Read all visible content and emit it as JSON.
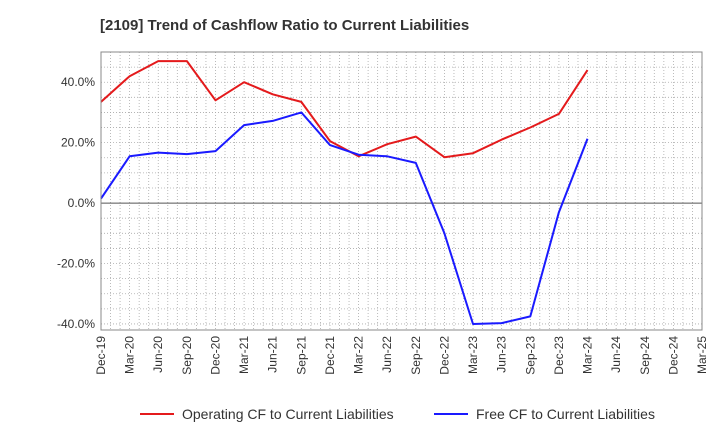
{
  "chart_data": {
    "type": "line",
    "title": "[2109]  Trend of Cashflow Ratio to Current Liabilities",
    "xlabel": "",
    "ylabel": "",
    "ylim": [
      -42,
      50
    ],
    "y_ticks": [
      -40,
      -20,
      0,
      20,
      40
    ],
    "y_tick_labels": [
      "-40.0%",
      "-20.0%",
      "0.0%",
      "20.0%",
      "40.0%"
    ],
    "x_tick_labels": [
      "Dec-19",
      "Mar-20",
      "Jun-20",
      "Sep-20",
      "Dec-20",
      "Mar-21",
      "Jun-21",
      "Sep-21",
      "Dec-21",
      "Mar-22",
      "Jun-22",
      "Sep-22",
      "Dec-22",
      "Mar-23",
      "Jun-23",
      "Sep-23",
      "Dec-23",
      "Mar-24",
      "Jun-24",
      "Sep-24",
      "Dec-24",
      "Mar-25"
    ],
    "grid": true,
    "legend_position": "bottom",
    "series": [
      {
        "name": "Operating CF to Current Liabilities",
        "color": "#e41a1c",
        "values": [
          33.5,
          42.0,
          47.0,
          47.0,
          34.0,
          40.0,
          36.0,
          33.5,
          20.5,
          15.5,
          19.5,
          22.0,
          15.2,
          16.5,
          21.0,
          25.0,
          29.5,
          44.0
        ]
      },
      {
        "name": "Free CF to Current Liabilities",
        "color": "#1a1aff",
        "values": [
          1.5,
          15.5,
          16.7,
          16.2,
          17.2,
          25.8,
          27.2,
          30.0,
          19.2,
          16.0,
          15.5,
          13.3,
          -10.0,
          -40.0,
          -39.7,
          -37.5,
          -3.0,
          21.3
        ]
      }
    ]
  }
}
